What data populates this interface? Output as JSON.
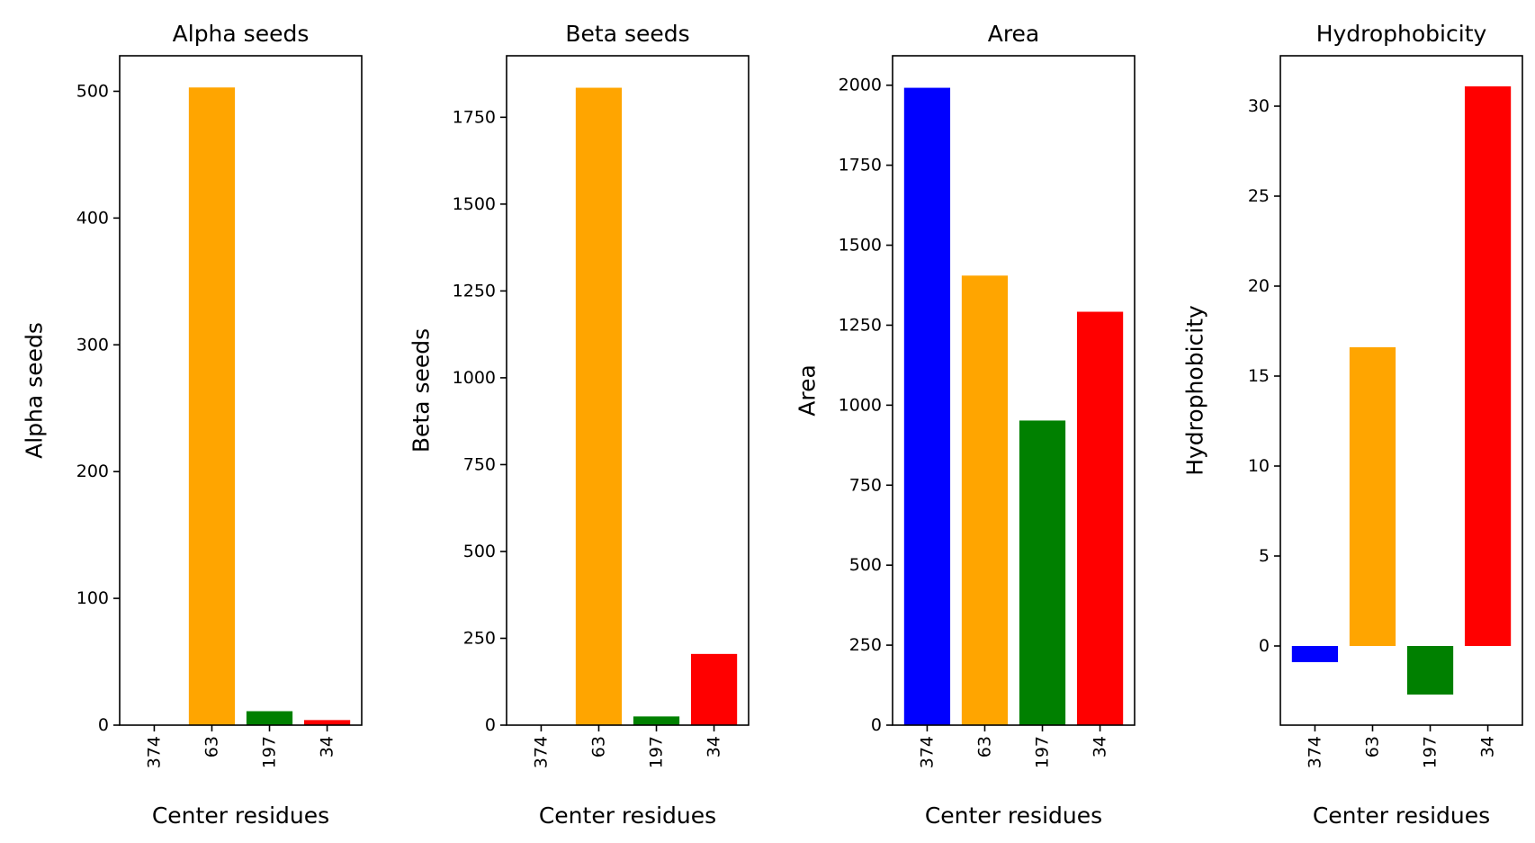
{
  "chart_data": [
    {
      "type": "bar",
      "title": "Alpha seeds",
      "xlabel": "Center residues",
      "ylabel": "Alpha seeds",
      "categories": [
        "374",
        "63",
        "197",
        "34"
      ],
      "values": [
        0,
        503,
        11,
        4
      ],
      "colors": [
        "#0000ff",
        "#ffa500",
        "#008000",
        "#ff0000"
      ],
      "ylim": [
        0,
        528
      ],
      "yticks": [
        0,
        100,
        200,
        300,
        400,
        500
      ],
      "grid": false
    },
    {
      "type": "bar",
      "title": "Beta seeds",
      "xlabel": "Center residues",
      "ylabel": "Beta seeds",
      "categories": [
        "374",
        "63",
        "197",
        "34"
      ],
      "values": [
        0,
        1835,
        25,
        205
      ],
      "colors": [
        "#0000ff",
        "#ffa500",
        "#008000",
        "#ff0000"
      ],
      "ylim": [
        0,
        1927
      ],
      "yticks": [
        0,
        250,
        500,
        750,
        1000,
        1250,
        1500,
        1750
      ],
      "grid": false
    },
    {
      "type": "bar",
      "title": "Area",
      "xlabel": "Center residues",
      "ylabel": "Area",
      "categories": [
        "374",
        "63",
        "197",
        "34"
      ],
      "values": [
        1992,
        1405,
        952,
        1292
      ],
      "colors": [
        "#0000ff",
        "#ffa500",
        "#008000",
        "#ff0000"
      ],
      "ylim": [
        0,
        2092
      ],
      "yticks": [
        0,
        250,
        500,
        750,
        1000,
        1250,
        1500,
        1750,
        2000
      ],
      "grid": false
    },
    {
      "type": "bar",
      "title": "Hydrophobicity",
      "xlabel": "Center residues",
      "ylabel": "Hydrophobicity",
      "categories": [
        "374",
        "63",
        "197",
        "34"
      ],
      "values": [
        -0.9,
        16.6,
        -2.7,
        31.1
      ],
      "colors": [
        "#0000ff",
        "#ffa500",
        "#008000",
        "#ff0000"
      ],
      "ylim": [
        -4.4,
        32.8
      ],
      "yticks": [
        0,
        5,
        10,
        15,
        20,
        25,
        30
      ],
      "grid": false
    }
  ]
}
